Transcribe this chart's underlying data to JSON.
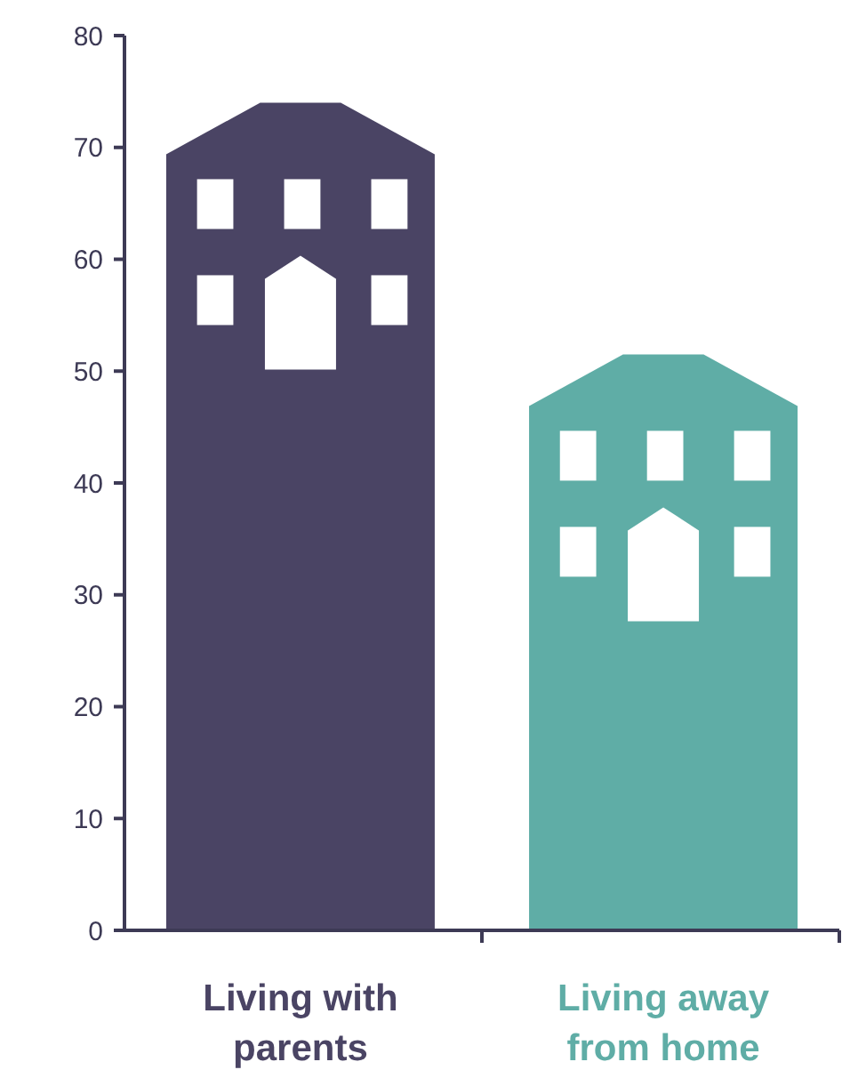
{
  "chart_data": {
    "type": "bar",
    "categories": [
      "Living with parents",
      "Living away from home"
    ],
    "values": [
      74,
      51.5
    ],
    "colors": [
      "#4a4464",
      "#5fada6"
    ],
    "ylim": [
      0,
      80
    ],
    "yticks": [
      0,
      10,
      20,
      30,
      40,
      50,
      60,
      70,
      80
    ],
    "grid": false
  }
}
